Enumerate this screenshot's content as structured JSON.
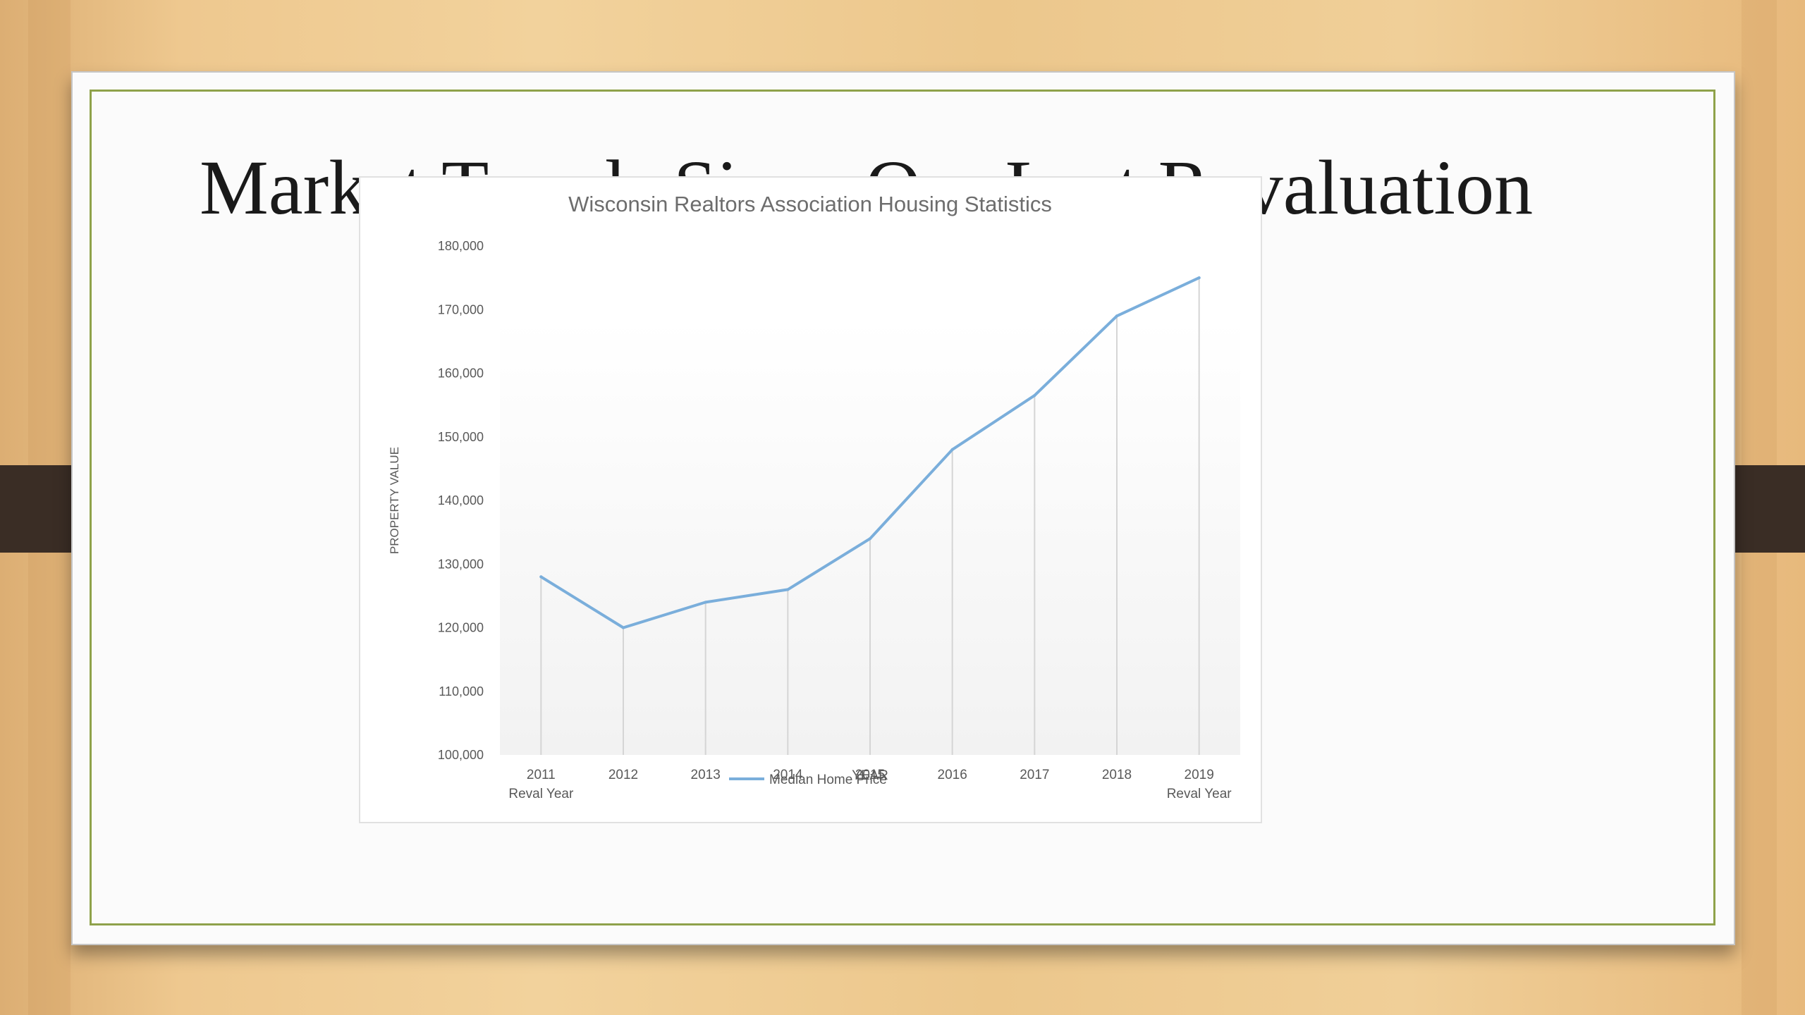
{
  "slide": {
    "title": "Market Trends Since Our Last Revaluation"
  },
  "chart_data": {
    "type": "line",
    "title": "Wisconsin Realtors Association Housing Statistics",
    "xlabel": "YEAR",
    "ylabel": "PROPERTY VALUE",
    "categories": [
      "2011",
      "2012",
      "2013",
      "2014",
      "2015",
      "2016",
      "2017",
      "2018",
      "2019"
    ],
    "category_sublabels": [
      "Reval Year",
      "",
      "",
      "",
      "",
      "",
      "",
      "",
      "Reval Year"
    ],
    "series": [
      {
        "name": "Median Home Price",
        "values": [
          128000,
          120000,
          124000,
          126000,
          134000,
          148000,
          156500,
          169000,
          175000
        ]
      }
    ],
    "ylim": [
      100000,
      180000
    ],
    "yticks": [
      "100,000",
      "110,000",
      "120,000",
      "130,000",
      "140,000",
      "150,000",
      "160,000",
      "170,000",
      "180,000"
    ],
    "drop_lines": true,
    "grid": false,
    "legend": "bottom",
    "colors": {
      "line": "#7aaedb",
      "drop_line": "#d5d5d5",
      "text": "#595959",
      "title": "#6d6d6d"
    }
  }
}
